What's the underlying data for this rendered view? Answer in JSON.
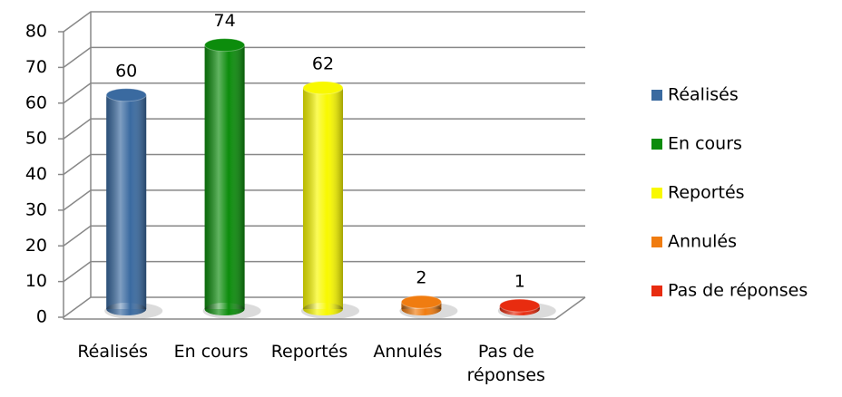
{
  "chart_data": {
    "type": "bar",
    "categories": [
      "Réalisés",
      "En cours",
      "Reportés",
      "Annulés",
      "Pas de réponses"
    ],
    "values": [
      60,
      74,
      62,
      2,
      1
    ],
    "colors": [
      "#3a6aa0",
      "#0c8c0c",
      "#f8f800",
      "#f07c10",
      "#e82c10"
    ],
    "ylim": [
      0,
      80
    ],
    "yticks": [
      0,
      10,
      20,
      30,
      40,
      50,
      60,
      70,
      80
    ],
    "grid": true,
    "legend": "right"
  }
}
